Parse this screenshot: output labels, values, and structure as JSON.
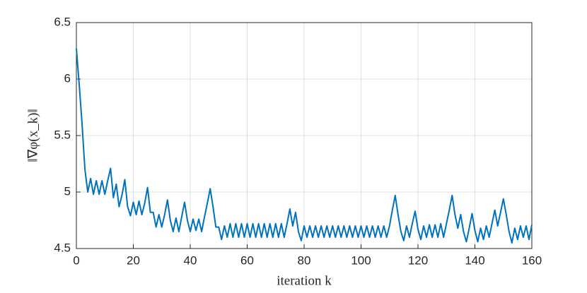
{
  "chart_data": {
    "type": "line",
    "xlabel": "iteration k",
    "ylabel": "‖∇φ(x_k)‖",
    "x": [
      0,
      1,
      2,
      3,
      4,
      5,
      6,
      7,
      8,
      9,
      10,
      11,
      12,
      13,
      14,
      15,
      16,
      17,
      18,
      19,
      20,
      21,
      22,
      23,
      24,
      25,
      26,
      27,
      28,
      29,
      30,
      31,
      32,
      33,
      34,
      35,
      36,
      37,
      38,
      39,
      40,
      41,
      42,
      43,
      44,
      45,
      46,
      47,
      48,
      49,
      50,
      51,
      52,
      53,
      54,
      55,
      56,
      57,
      58,
      59,
      60,
      61,
      62,
      63,
      64,
      65,
      66,
      67,
      68,
      69,
      70,
      71,
      72,
      73,
      74,
      75,
      76,
      77,
      78,
      79,
      80,
      81,
      82,
      83,
      84,
      85,
      86,
      87,
      88,
      89,
      90,
      91,
      92,
      93,
      94,
      95,
      96,
      97,
      98,
      99,
      100,
      101,
      102,
      103,
      104,
      105,
      106,
      107,
      108,
      109,
      110,
      111,
      112,
      113,
      114,
      115,
      116,
      117,
      118,
      119,
      120,
      121,
      122,
      123,
      124,
      125,
      126,
      127,
      128,
      129,
      130,
      131,
      132,
      133,
      134,
      135,
      136,
      137,
      138,
      139,
      140,
      141,
      142,
      143,
      144,
      145,
      146,
      147,
      148,
      149,
      150,
      151,
      152,
      153,
      154,
      155,
      156,
      157,
      158,
      159,
      160
    ],
    "series": [
      {
        "color": "#0072bd",
        "values": [
          6.27,
          5.95,
          5.6,
          5.2,
          5.0,
          5.12,
          4.98,
          5.1,
          4.98,
          5.1,
          4.98,
          5.1,
          5.21,
          4.95,
          5.07,
          4.87,
          4.97,
          5.11,
          4.87,
          4.79,
          4.91,
          4.8,
          4.92,
          4.8,
          4.9,
          5.04,
          4.82,
          4.82,
          4.69,
          4.8,
          4.69,
          4.8,
          4.93,
          4.75,
          4.65,
          4.77,
          4.65,
          4.78,
          4.91,
          4.75,
          4.65,
          4.76,
          4.66,
          4.76,
          4.65,
          4.78,
          4.9,
          5.03,
          4.87,
          4.69,
          4.69,
          4.58,
          4.7,
          4.6,
          4.72,
          4.6,
          4.72,
          4.6,
          4.72,
          4.6,
          4.72,
          4.6,
          4.72,
          4.6,
          4.72,
          4.6,
          4.72,
          4.6,
          4.72,
          4.6,
          4.72,
          4.6,
          4.72,
          4.6,
          4.72,
          4.85,
          4.7,
          4.82,
          4.65,
          4.57,
          4.7,
          4.6,
          4.7,
          4.6,
          4.7,
          4.6,
          4.7,
          4.6,
          4.7,
          4.6,
          4.7,
          4.6,
          4.7,
          4.6,
          4.7,
          4.6,
          4.7,
          4.6,
          4.7,
          4.6,
          4.7,
          4.6,
          4.7,
          4.6,
          4.7,
          4.6,
          4.7,
          4.6,
          4.7,
          4.6,
          4.7,
          4.84,
          4.97,
          4.8,
          4.65,
          4.57,
          4.7,
          4.6,
          4.72,
          4.83,
          4.67,
          4.58,
          4.7,
          4.6,
          4.71,
          4.6,
          4.71,
          4.6,
          4.72,
          4.6,
          4.72,
          4.84,
          4.97,
          4.8,
          4.68,
          4.8,
          4.65,
          4.56,
          4.68,
          4.81,
          4.66,
          4.56,
          4.68,
          4.58,
          4.7,
          4.6,
          4.72,
          4.84,
          4.7,
          4.82,
          4.94,
          4.8,
          4.65,
          4.55,
          4.68,
          4.58,
          4.7,
          4.6,
          4.7,
          4.58,
          4.71
        ]
      }
    ],
    "xlim": [
      0,
      160
    ],
    "xticks": [
      0,
      20,
      40,
      60,
      80,
      100,
      120,
      140,
      160
    ],
    "ylim": [
      4.5,
      6.5
    ],
    "yticks": [
      4.5,
      5,
      5.5,
      6,
      6.5
    ],
    "grid": true
  }
}
